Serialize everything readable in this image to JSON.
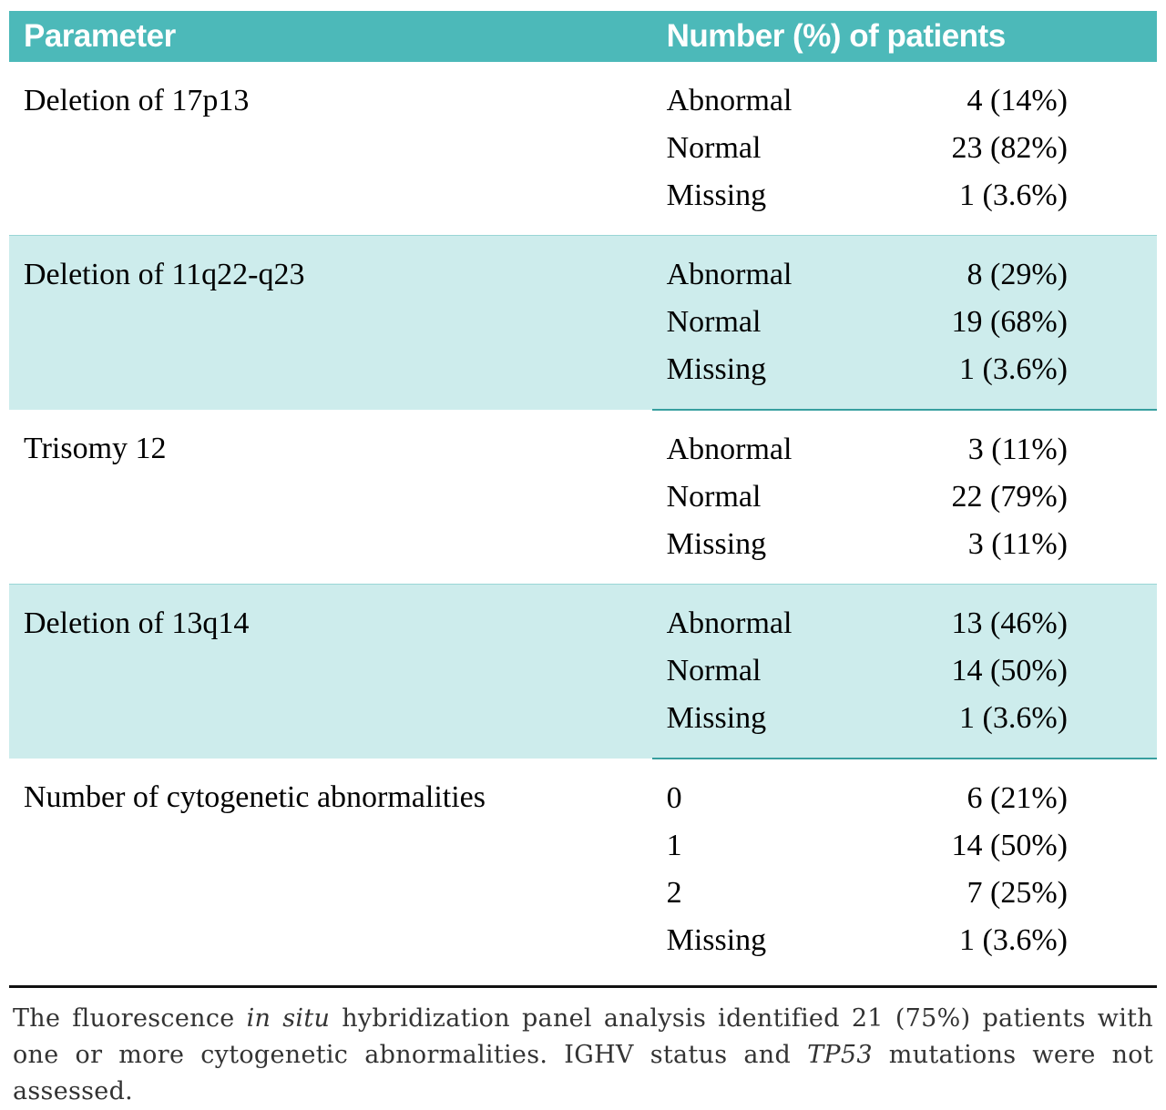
{
  "table": {
    "headers": {
      "parameter": "Parameter",
      "patients": "Number (%) of patients"
    },
    "rows": [
      {
        "parameter": "Deletion of 17p13",
        "entries": [
          {
            "label": "Abnormal",
            "value": "4 (14%)"
          },
          {
            "label": "Normal",
            "value": "23 (82%)"
          },
          {
            "label": "Missing",
            "value": "1 (3.6%)"
          }
        ]
      },
      {
        "parameter": "Deletion of 11q22-q23",
        "entries": [
          {
            "label": "Abnormal",
            "value": "8 (29%)"
          },
          {
            "label": "Normal",
            "value": "19 (68%)"
          },
          {
            "label": "Missing",
            "value": "1 (3.6%)"
          }
        ]
      },
      {
        "parameter": "Trisomy 12",
        "entries": [
          {
            "label": "Abnormal",
            "value": "3 (11%)"
          },
          {
            "label": "Normal",
            "value": "22 (79%)"
          },
          {
            "label": "Missing",
            "value": "3 (11%)"
          }
        ]
      },
      {
        "parameter": "Deletion of 13q14",
        "entries": [
          {
            "label": "Abnormal",
            "value": "13 (46%)"
          },
          {
            "label": "Normal",
            "value": "14 (50%)"
          },
          {
            "label": "Missing",
            "value": "1 (3.6%)"
          }
        ]
      },
      {
        "parameter": "Number of cytogenetic abnormalities",
        "entries": [
          {
            "label": "0",
            "value": "6 (21%)"
          },
          {
            "label": "1",
            "value": "14 (50%)"
          },
          {
            "label": "2",
            "value": "7 (25%)"
          },
          {
            "label": "Missing",
            "value": "1 (3.6%)"
          }
        ]
      }
    ]
  },
  "footnote": {
    "segments": [
      {
        "text": "The fluorescence ",
        "italic": false
      },
      {
        "text": "in situ",
        "italic": true
      },
      {
        "text": " hybridization panel analysis identified 21 (75%) patients with one or more cytogenetic abnormalities. IGHV status and ",
        "italic": false
      },
      {
        "text": "TP53",
        "italic": true
      },
      {
        "text": " mutations were not assessed.",
        "italic": false
      }
    ]
  },
  "colors": {
    "header_bg": "#4cb9b9",
    "band_bg": "#cdecec",
    "band_edge_dark": "#379f9f",
    "band_edge_light": "#9ad6d6",
    "header_text": "#ffffff",
    "body_text": "#000000",
    "footnote_text": "#333333"
  }
}
